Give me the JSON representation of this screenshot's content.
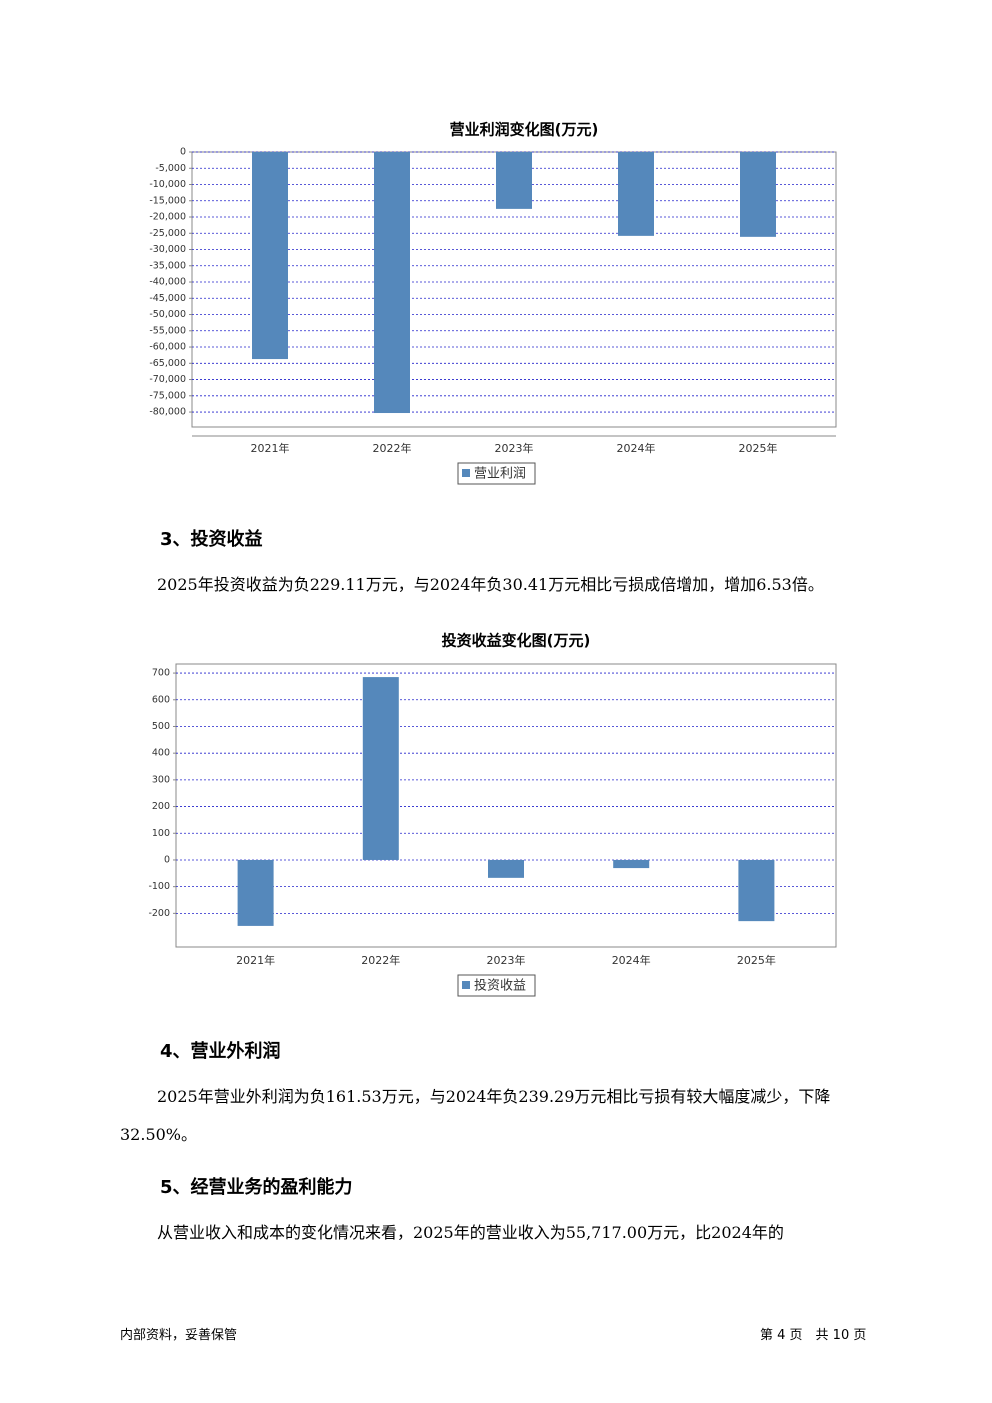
{
  "chart_data": [
    {
      "type": "bar",
      "title": "营业利润变化图(万元)",
      "categories": [
        "2021年",
        "2022年",
        "2023年",
        "2024年",
        "2025年"
      ],
      "series": [
        {
          "name": "营业利润",
          "color": "#5588bb",
          "values": [
            -63700,
            -80300,
            -17500,
            -25800,
            -26100
          ]
        }
      ],
      "ylim": [
        -84600,
        0
      ],
      "yticks": [
        0,
        {
          "value": -5000,
          "label": "-5,000"
        },
        {
          "value": -10000,
          "label": "-10,000"
        },
        {
          "value": -15000,
          "label": "-15,000"
        },
        {
          "value": -20000,
          "label": "-20,000"
        },
        {
          "value": -25000,
          "label": "-25,000"
        },
        {
          "value": -30000,
          "label": "-30,000"
        },
        {
          "value": -35000,
          "label": "-35,000"
        },
        {
          "value": -40000,
          "label": "-40,000"
        },
        {
          "value": -45000,
          "label": "-45,000"
        },
        {
          "value": -50000,
          "label": "-50,000"
        },
        {
          "value": -55000,
          "label": "-55,000"
        },
        {
          "value": -60000,
          "label": "-60,000"
        },
        {
          "value": -65000,
          "label": "-65,000"
        },
        {
          "value": -70000,
          "label": "-70,000"
        },
        {
          "value": -75000,
          "label": "-75,000"
        },
        {
          "value": -80000,
          "label": "-80,000"
        }
      ],
      "grid": true
    },
    {
      "type": "bar",
      "title": "投资收益变化图(万元)",
      "categories": [
        "2021年",
        "2022年",
        "2023年",
        "2024年",
        "2025年"
      ],
      "series": [
        {
          "name": "投资收益",
          "color": "#5588bb",
          "values": [
            -247,
            685,
            -67,
            -30.41,
            -229.11
          ]
        }
      ],
      "ylim": [
        -326,
        734
      ],
      "yticks": [
        -200,
        -100,
        0,
        100,
        200,
        300,
        400,
        500,
        600,
        700
      ],
      "grid": true
    }
  ],
  "document": {
    "sections": [
      {
        "heading": "3、投资收益",
        "paragraph": "2025年投资收益为负229.11万元，与2024年负30.41万元相比亏损成倍增加，增加6.53倍。"
      },
      {
        "heading": "4、营业外利润",
        "paragraph": "2025年营业外利润为负161.53万元，与2024年负239.29万元相比亏损有较大幅度减少，下降32.50%。"
      },
      {
        "heading": "5、经营业务的盈利能力",
        "paragraph": "从营业收入和成本的变化情况来看，2025年的营业收入为55,717.00万元，比2024年的"
      }
    ],
    "footer": {
      "left": "内部资料，妥善保管",
      "right": "第 4 页　共 10 页"
    }
  }
}
